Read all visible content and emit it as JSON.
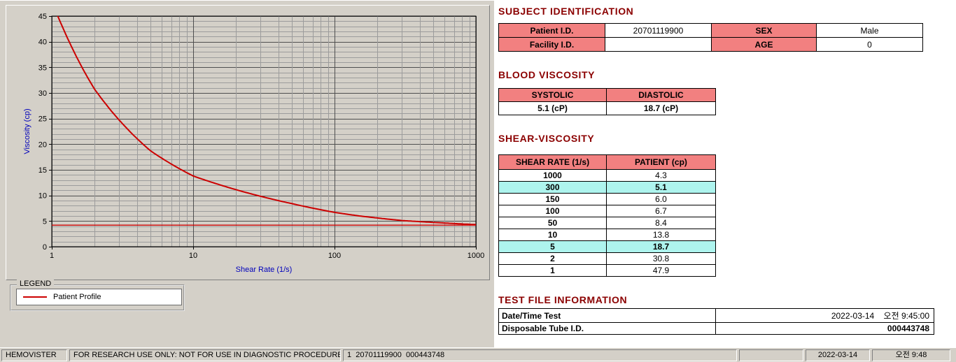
{
  "titles": {
    "subject_identification": "SUBJECT IDENTIFICATION",
    "blood_viscosity": "BLOOD VISCOSITY",
    "shear_viscosity": "SHEAR-VISCOSITY",
    "test_file_information": "TEST FILE INFORMATION"
  },
  "subject": {
    "patient_id_label": "Patient I.D.",
    "patient_id": "20701119900",
    "sex_label": "SEX",
    "sex": "Male",
    "facility_id_label": "Facility I.D.",
    "facility_id": "",
    "age_label": "AGE",
    "age": "0"
  },
  "blood_viscosity": {
    "systolic_header": "SYSTOLIC",
    "diastolic_header": "DIASTOLIC",
    "systolic_value": "5.1 (cP)",
    "diastolic_value": "18.7 (cP)"
  },
  "shear_viscosity": {
    "rate_header": "SHEAR RATE (1/s)",
    "patient_header": "PATIENT (cp)",
    "rows": [
      {
        "rate": "1000",
        "value": "4.3",
        "highlight": false
      },
      {
        "rate": "300",
        "value": "5.1",
        "highlight": true
      },
      {
        "rate": "150",
        "value": "6.0",
        "highlight": false
      },
      {
        "rate": "100",
        "value": "6.7",
        "highlight": false
      },
      {
        "rate": "50",
        "value": "8.4",
        "highlight": false
      },
      {
        "rate": "10",
        "value": "13.8",
        "highlight": false
      },
      {
        "rate": "5",
        "value": "18.7",
        "highlight": true
      },
      {
        "rate": "2",
        "value": "30.8",
        "highlight": false
      },
      {
        "rate": "1",
        "value": "47.9",
        "highlight": false
      }
    ]
  },
  "test_file": {
    "date_label": "Date/Time Test",
    "date_value": "2022-03-14    오전 9:45:00",
    "tube_label": "Disposable Tube I.D.",
    "tube_value": "000443748"
  },
  "legend": {
    "group_label": "LEGEND",
    "series_label": "Patient Profile"
  },
  "status_bar": [
    "HEMOVISTER",
    "FOR RESEARCH USE ONLY: NOT FOR USE IN DIAGNOSTIC PROCEDURES",
    "1  20701119900  000443748",
    "",
    "2022-03-14",
    "오전 9:48"
  ],
  "colors": {
    "section_title": "#8b0000",
    "table_header_bg": "#f28080",
    "highlight_bg": "#aef4ee",
    "series_color": "#cc0000"
  },
  "chart_data": {
    "type": "line",
    "title": "",
    "xlabel": "Shear Rate (1/s)",
    "ylabel": "Viscosity (cp)",
    "x_scale": "log",
    "xlim": [
      1,
      1000
    ],
    "ylim": [
      0,
      45
    ],
    "x_ticks": [
      1,
      10,
      100,
      1000
    ],
    "y_ticks": [
      0,
      5,
      10,
      15,
      20,
      25,
      30,
      35,
      40,
      45
    ],
    "grid": true,
    "legend_position": "below-left",
    "series": [
      {
        "name": "Patient Profile",
        "color": "#cc0000",
        "x": [
          1,
          2,
          5,
          10,
          50,
          100,
          150,
          300,
          1000
        ],
        "y": [
          47.9,
          30.8,
          18.7,
          13.8,
          8.4,
          6.7,
          6.0,
          5.1,
          4.3
        ]
      }
    ],
    "reference_line_y": 4.2,
    "plot_bg": "#d4d0c8",
    "grid_major": "#4f4f4f",
    "grid_minor": "#9c9c9c",
    "axis_label_color": "#0000bb"
  }
}
